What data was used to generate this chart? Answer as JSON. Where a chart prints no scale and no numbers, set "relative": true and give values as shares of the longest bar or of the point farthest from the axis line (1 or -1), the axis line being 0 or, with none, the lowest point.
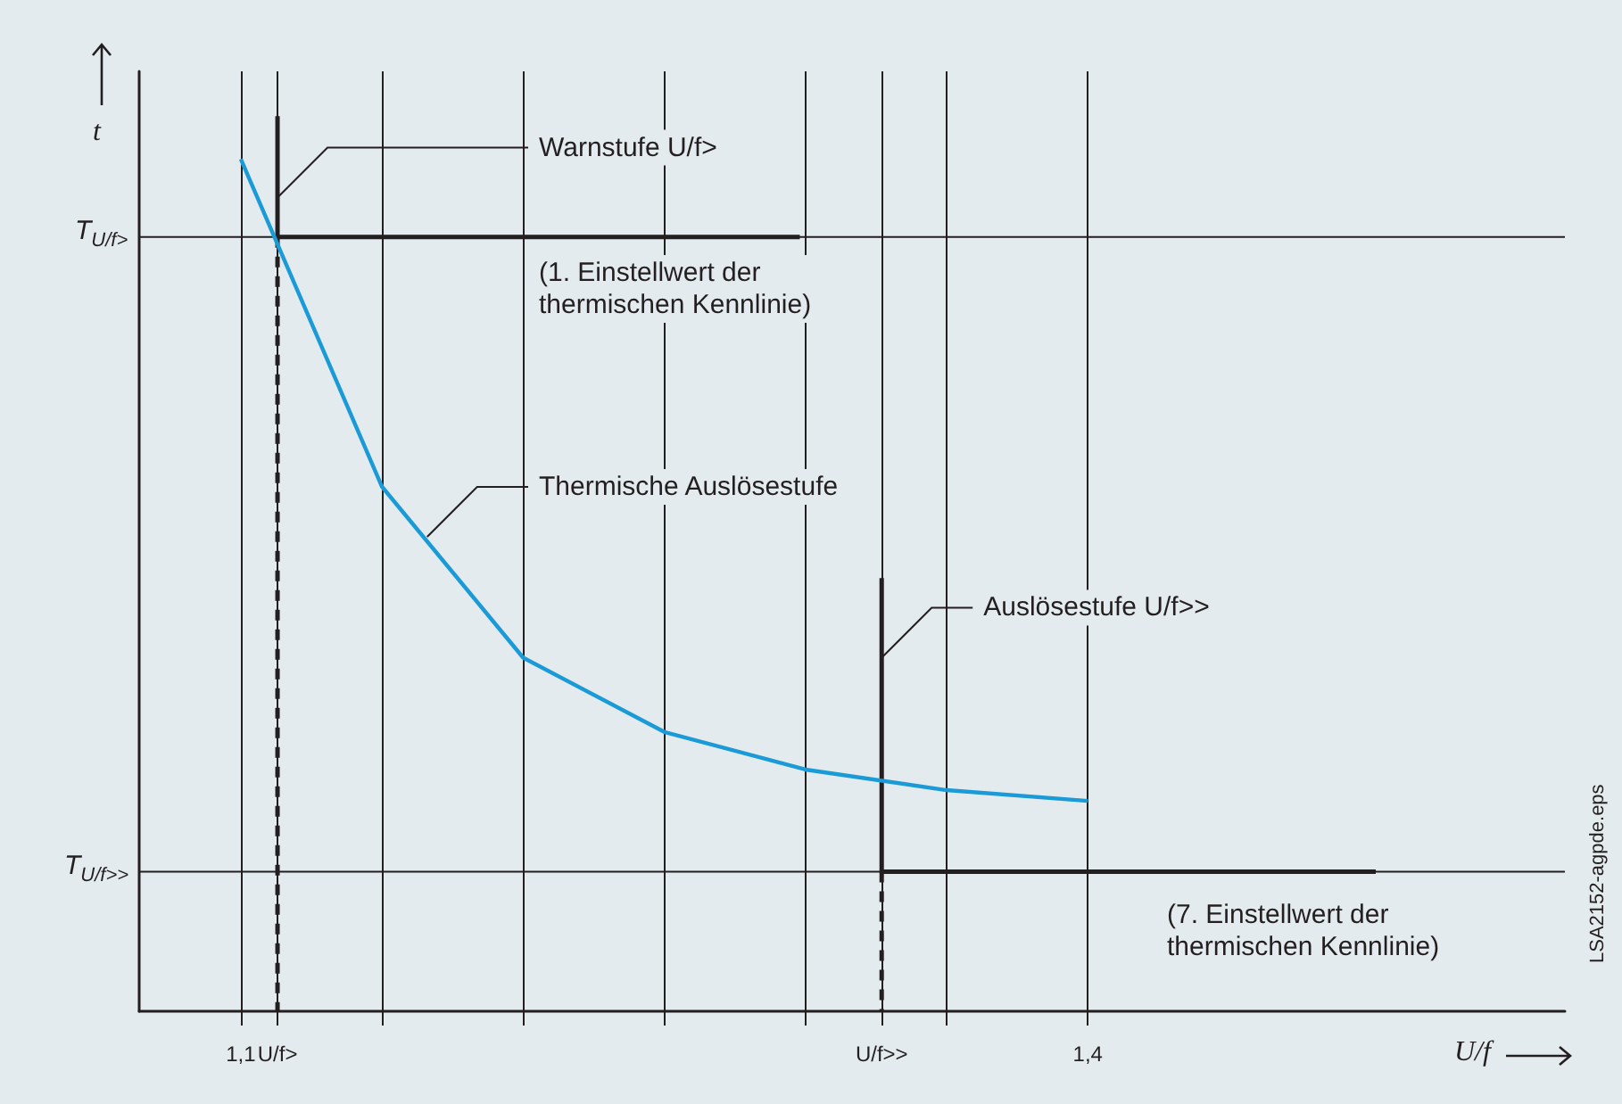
{
  "chart_data": {
    "type": "line",
    "relative": true,
    "xlabel": "U/f",
    "ylabel": "t",
    "xlim": [
      1.064,
      1.569
    ],
    "xticks": [
      {
        "value": 1.1,
        "label": "1,1"
      },
      {
        "value": 1.113,
        "label": "U/f>"
      },
      {
        "value": 1.15,
        "label": null
      },
      {
        "value": 1.2,
        "label": null
      },
      {
        "value": 1.25,
        "label": null
      },
      {
        "value": 1.3,
        "label": null
      },
      {
        "value": 1.327,
        "label": "U/f>>"
      },
      {
        "value": 1.35,
        "label": null
      },
      {
        "value": 1.4,
        "label": "1,4"
      }
    ],
    "series": [
      {
        "color": "#1a9ad6",
        "x": [
          1.1,
          1.15,
          1.2,
          1.25,
          1.3,
          1.35,
          1.4
        ],
        "values": [
          0.952,
          0.586,
          0.395,
          0.312,
          0.27,
          0.247,
          0.235
        ]
      },
      {
        "color": "#231f20",
        "x": [
          1.298,
          1.113,
          1.113
        ],
        "values": [
          0.865,
          0.865,
          1
        ]
      },
      {
        "color": "#231f20",
        "line_style": "dashed",
        "x": [
          1.113,
          1.113
        ],
        "values": [
          0.865,
          0
        ]
      },
      {
        "color": "#231f20",
        "x": [
          1.327,
          1.327,
          1.502
        ],
        "values": [
          0.484,
          0.156,
          0.156
        ]
      },
      {
        "color": "#231f20",
        "line_style": "dashed",
        "x": [
          1.327,
          1.327
        ],
        "values": [
          0.156,
          0
        ]
      }
    ],
    "ref_lines": [
      {
        "axis": "y",
        "value": 0.865,
        "label": "T$_{U/f>}$"
      },
      {
        "axis": "y",
        "value": 0.156,
        "label": "T$_{U/f>>}$"
      }
    ],
    "annotations": [
      {
        "text": "Warnstufe U/f>",
        "x": 1.113,
        "y": 0.909
      },
      "(1. Einstellwert der\nthermischen Kennlinie)",
      {
        "text": "Thermische Auslösestufe",
        "x": 1.166,
        "y": 0.53
      },
      {
        "text": "Auslösestufe U/f>>",
        "x": 1.327,
        "y": 0.395
      },
      "(7. Einstellwert der\nthermischen Kennlinie)",
      "LSA2152-agpde.eps"
    ],
    "grid": "x",
    "marker": "none",
    "line_style": "solid"
  }
}
